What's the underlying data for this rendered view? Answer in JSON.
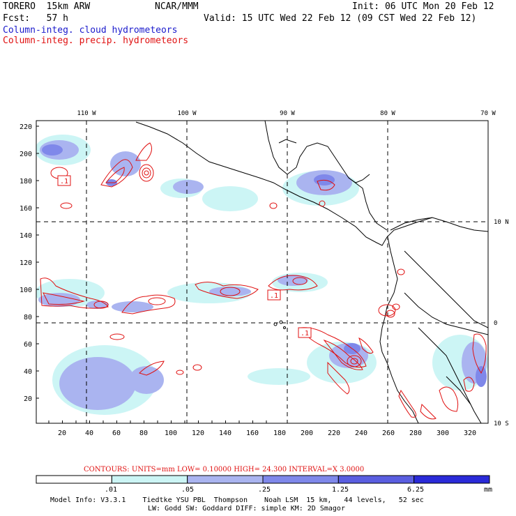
{
  "header": {
    "model": "TORERO  15km ARW",
    "org": "NCAR/MMM",
    "init": "Init: 06 UTC Mon 20 Feb 12",
    "fcst": "Fcst:   57 h",
    "valid": "Valid: 15 UTC Wed 22 Feb 12 (09 CST Wed 22 Feb 12)",
    "field1": "Column-integ. cloud hydrometeors",
    "field2": "Column-integ. precip. hydrometeors"
  },
  "colors": {
    "cloud_text": "#1a1acc",
    "precip_text": "#e01010",
    "contour": "#e01010",
    "coast": "#000000",
    "shade_levels": [
      "#ffffff",
      "#ccf5f5",
      "#aab4f0",
      "#7f88ea",
      "#5a5ee0",
      "#2a2ad8"
    ]
  },
  "map": {
    "top_lon_labels": [
      "110 W",
      "100 W",
      "90 W",
      "80 W",
      "70 W"
    ],
    "left_y_labels": [
      "220",
      "200",
      "180",
      "160",
      "140",
      "120",
      "100",
      "80",
      "60",
      "40",
      "20"
    ],
    "bottom_x_labels": [
      "20",
      "40",
      "60",
      "80",
      "100",
      "120",
      "140",
      "160",
      "180",
      "200",
      "220",
      "240",
      "260",
      "280",
      "300",
      "320"
    ],
    "right_lat_labels": [
      "10 N",
      "0",
      "10 S"
    ],
    "contour_labels": [
      ".1",
      ".1",
      ".1"
    ]
  },
  "legend": {
    "contours_text": "CONTOURS:  UNITS=mm  LOW= 0.10000      HIGH=  24.300      INTERVAL=X  3.0000",
    "colorbar_labels": [
      ".01",
      ".05",
      ".25",
      "1.25",
      "6.25"
    ],
    "units": "mm"
  },
  "footer": {
    "line1": "Model Info: V3.3.1    Tiedtke YSU PBL  Thompson    Noah LSM  15 km,   44 levels,   52 sec",
    "line2": "LW: Godd SW: Goddard DIFF: simple KM: 2D Smagor"
  }
}
